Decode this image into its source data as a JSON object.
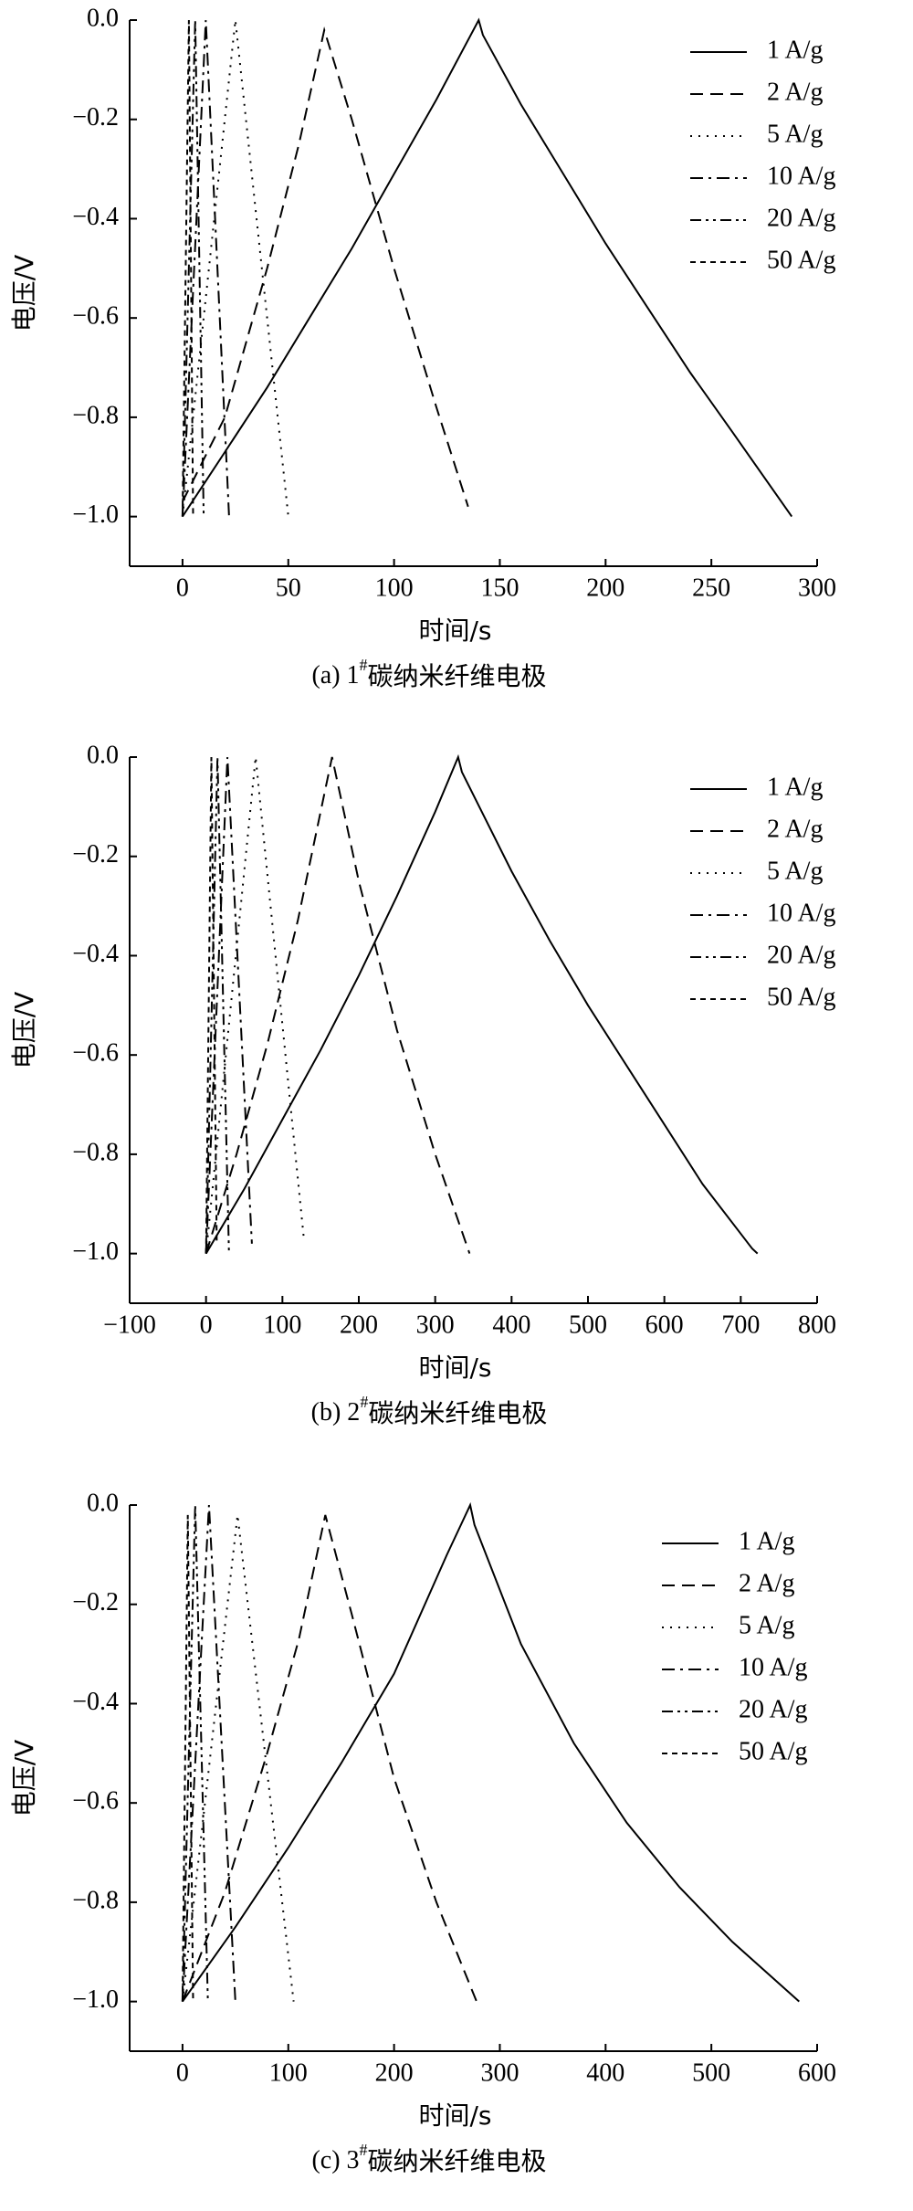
{
  "chart_data": [
    {
      "type": "line",
      "caption": {
        "prefix": "(a)  1",
        "sup": "#",
        "text": "碳纳米纤维电极"
      },
      "xlabel": "时间/s",
      "ylabel": "电压/V",
      "legend": "upper right",
      "xlim": [
        -25,
        300
      ],
      "xticks": [
        0,
        50,
        100,
        150,
        200,
        250,
        300
      ],
      "ylim": [
        -1.1,
        0
      ],
      "yticks": [
        {
          "value": 0,
          "label": "0.0"
        },
        {
          "value": -0.2,
          "label": "−0.2"
        },
        {
          "value": -0.4,
          "label": "−0.4"
        },
        {
          "value": -0.6,
          "label": "−0.6"
        },
        {
          "value": -0.8,
          "label": "−0.8"
        },
        {
          "value": -1,
          "label": "−1.0"
        }
      ],
      "series": [
        {
          "name": "1 A/g",
          "color": "#000000",
          "x": [
            0,
            20,
            40,
            60,
            80,
            100,
            120,
            140,
            142,
            160,
            180,
            200,
            220,
            240,
            260,
            288
          ],
          "values": [
            -1,
            -0.87,
            -0.74,
            -0.6,
            -0.46,
            -0.31,
            -0.16,
            0,
            -0.03,
            -0.17,
            -0.31,
            -0.45,
            -0.58,
            -0.71,
            -0.83,
            -1
          ]
        },
        {
          "name": "2 A/g",
          "color": "#000000",
          "x": [
            0,
            20,
            40,
            55,
            67,
            80,
            100,
            120,
            135
          ],
          "values": [
            -0.97,
            -0.8,
            -0.5,
            -0.25,
            -0.02,
            -0.2,
            -0.5,
            -0.78,
            -0.98
          ]
        },
        {
          "name": "5 A/g",
          "color": "#000000",
          "x": [
            0,
            25,
            50
          ],
          "values": [
            -1,
            0,
            -1
          ]
        },
        {
          "name": "10 A/g",
          "color": "#000000",
          "x": [
            0,
            11,
            22
          ],
          "values": [
            -1,
            0,
            -1
          ]
        },
        {
          "name": "20 A/g",
          "color": "#000000",
          "x": [
            0,
            6,
            10
          ],
          "values": [
            -1,
            0,
            -1
          ]
        },
        {
          "name": "50 A/g",
          "color": "#000000",
          "x": [
            0,
            3,
            5
          ],
          "values": [
            -1,
            0,
            -1
          ]
        }
      ]
    },
    {
      "type": "line",
      "caption": {
        "prefix": "(b)  2",
        "sup": "#",
        "text": "碳纳米纤维电极"
      },
      "xlabel": "时间/s",
      "ylabel": "电压/V",
      "legend": "upper right",
      "xlim": [
        -100,
        800
      ],
      "xticks": [
        {
          "value": -100,
          "label": "−100"
        },
        0,
        100,
        200,
        300,
        400,
        500,
        600,
        700,
        800
      ],
      "ylim": [
        -1.1,
        0
      ],
      "yticks": [
        {
          "value": 0,
          "label": "0.0"
        },
        {
          "value": -0.2,
          "label": "−0.2"
        },
        {
          "value": -0.4,
          "label": "−0.4"
        },
        {
          "value": -0.6,
          "label": "−0.6"
        },
        {
          "value": -0.8,
          "label": "−0.8"
        },
        {
          "value": -1,
          "label": "−1.0"
        }
      ],
      "series": [
        {
          "name": "1 A/g",
          "color": "#000000",
          "x": [
            0,
            50,
            100,
            150,
            200,
            250,
            300,
            330,
            335,
            400,
            450,
            500,
            550,
            600,
            650,
            705,
            710,
            715,
            722
          ],
          "values": [
            -1,
            -0.87,
            -0.73,
            -0.59,
            -0.44,
            -0.28,
            -0.11,
            0,
            -0.03,
            -0.23,
            -0.37,
            -0.5,
            -0.62,
            -0.74,
            -0.86,
            -0.97,
            -0.98,
            -0.99,
            -1
          ]
        },
        {
          "name": "2 A/g",
          "color": "#000000",
          "x": [
            0,
            40,
            80,
            120,
            165,
            200,
            250,
            300,
            345
          ],
          "values": [
            -1,
            -0.8,
            -0.58,
            -0.33,
            0,
            -0.25,
            -0.55,
            -0.8,
            -1
          ]
        },
        {
          "name": "5 A/g",
          "color": "#000000",
          "x": [
            0,
            65,
            128
          ],
          "values": [
            -1,
            0,
            -0.97
          ]
        },
        {
          "name": "10 A/g",
          "color": "#000000",
          "x": [
            0,
            28,
            60
          ],
          "values": [
            -1,
            0,
            -0.98
          ]
        },
        {
          "name": "20 A/g",
          "color": "#000000",
          "x": [
            0,
            15,
            30
          ],
          "values": [
            -1,
            0,
            -1
          ]
        },
        {
          "name": "50 A/g",
          "color": "#000000",
          "x": [
            0,
            7,
            14
          ],
          "values": [
            -1,
            0,
            -0.98
          ]
        }
      ]
    },
    {
      "type": "line",
      "caption": {
        "prefix": "(c)  3",
        "sup": "#",
        "text": "碳纳米纤维电极"
      },
      "xlabel": "时间/s",
      "ylabel": "电压/V",
      "legend": "upper right",
      "xlim": [
        -50,
        600
      ],
      "xticks": [
        0,
        100,
        200,
        300,
        400,
        500,
        600
      ],
      "ylim": [
        -1.1,
        0
      ],
      "yticks": [
        {
          "value": 0,
          "label": "0.0"
        },
        {
          "value": -0.2,
          "label": "−0.2"
        },
        {
          "value": -0.4,
          "label": "−0.4"
        },
        {
          "value": -0.6,
          "label": "−0.6"
        },
        {
          "value": -0.8,
          "label": "−0.8"
        },
        {
          "value": -1,
          "label": "−1.0"
        }
      ],
      "series": [
        {
          "name": "1 A/g",
          "color": "#000000",
          "x": [
            0,
            50,
            100,
            150,
            200,
            250,
            272,
            276,
            320,
            370,
            420,
            470,
            520,
            583
          ],
          "values": [
            -1,
            -0.85,
            -0.69,
            -0.52,
            -0.34,
            -0.1,
            0,
            -0.04,
            -0.28,
            -0.48,
            -0.64,
            -0.77,
            -0.88,
            -1
          ]
        },
        {
          "name": "2 A/g",
          "color": "#000000",
          "x": [
            0,
            40,
            80,
            110,
            135,
            160,
            200,
            240,
            278
          ],
          "values": [
            -1,
            -0.78,
            -0.5,
            -0.27,
            -0.02,
            -0.22,
            -0.55,
            -0.8,
            -1
          ]
        },
        {
          "name": "5 A/g",
          "color": "#000000",
          "x": [
            0,
            52,
            105
          ],
          "values": [
            -1,
            -0.02,
            -1
          ]
        },
        {
          "name": "10 A/g",
          "color": "#000000",
          "x": [
            0,
            25,
            50
          ],
          "values": [
            -1,
            0,
            -1
          ]
        },
        {
          "name": "20 A/g",
          "color": "#000000",
          "x": [
            0,
            12,
            24
          ],
          "values": [
            -1,
            0,
            -1
          ]
        },
        {
          "name": "50 A/g",
          "color": "#000000",
          "x": [
            0,
            5,
            10
          ],
          "values": [
            -1,
            -0.02,
            -1
          ]
        }
      ]
    }
  ]
}
